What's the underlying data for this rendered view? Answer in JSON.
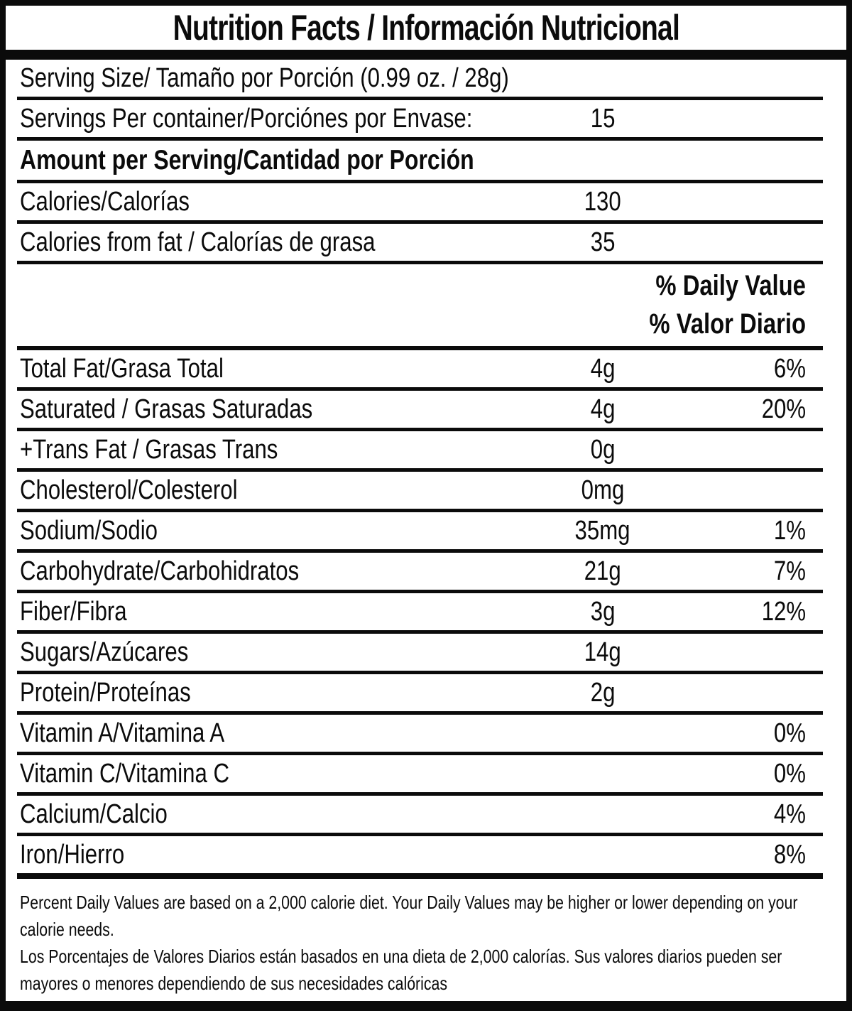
{
  "label": {
    "title": "Nutrition Facts / Información Nutricional",
    "serving_size": {
      "label": "Serving Size/ Tamaño por Porción  (0.99 oz. / 28g)"
    },
    "servings_per_container": {
      "label": "Servings Per container/Porciónes por Envase:",
      "value": "15"
    },
    "amount_per_serving_header": "Amount per Serving/Cantidad por Porción",
    "calories": {
      "label": "Calories/Calorías",
      "value": "130"
    },
    "calories_from_fat": {
      "label": "Calories from fat / Calorías de grasa",
      "value": "35"
    },
    "daily_value_header": {
      "line1": "% Daily Value",
      "line2": "% Valor Diario"
    },
    "nutrients": [
      {
        "label": "Total Fat/Grasa Total",
        "amount": "4g",
        "dv": "6%"
      },
      {
        "label": "Saturated / Grasas Saturadas",
        "amount": "4g",
        "dv": "20%"
      },
      {
        "label": "+Trans Fat / Grasas Trans",
        "amount": "0g",
        "dv": ""
      },
      {
        "label": "Cholesterol/Colesterol",
        "amount": "0mg",
        "dv": ""
      },
      {
        "label": "Sodium/Sodio",
        "amount": "35mg",
        "dv": "1%"
      },
      {
        "label": "Carbohydrate/Carbohidratos",
        "amount": "21g",
        "dv": "7%"
      },
      {
        "label": "Fiber/Fibra",
        "amount": "3g",
        "dv": "12%"
      },
      {
        "label": "Sugars/Azúcares",
        "amount": "14g",
        "dv": ""
      },
      {
        "label": "Protein/Proteínas",
        "amount": "2g",
        "dv": ""
      },
      {
        "label": "Vitamin A/Vitamina A",
        "amount": "",
        "dv": "0%"
      },
      {
        "label": "Vitamin C/Vitamina C",
        "amount": "",
        "dv": "0%"
      },
      {
        "label": "Calcium/Calcio",
        "amount": "",
        "dv": "4%"
      },
      {
        "label": "Iron/Hierro",
        "amount": "",
        "dv": "8%"
      }
    ],
    "footnotes": [
      "Percent Daily Values are based on a 2,000 calorie diet. Your Daily Values may be higher or lower depending on your calorie needs.",
      "Los Porcentajes de Valores Diarios están basados en una dieta de 2,000 calorías. Sus valores diarios pueden ser mayores o menores dependiendo de sus necesidades calóricas"
    ],
    "colors": {
      "ink": "#0b0b0b",
      "background": "#ffffff"
    }
  }
}
